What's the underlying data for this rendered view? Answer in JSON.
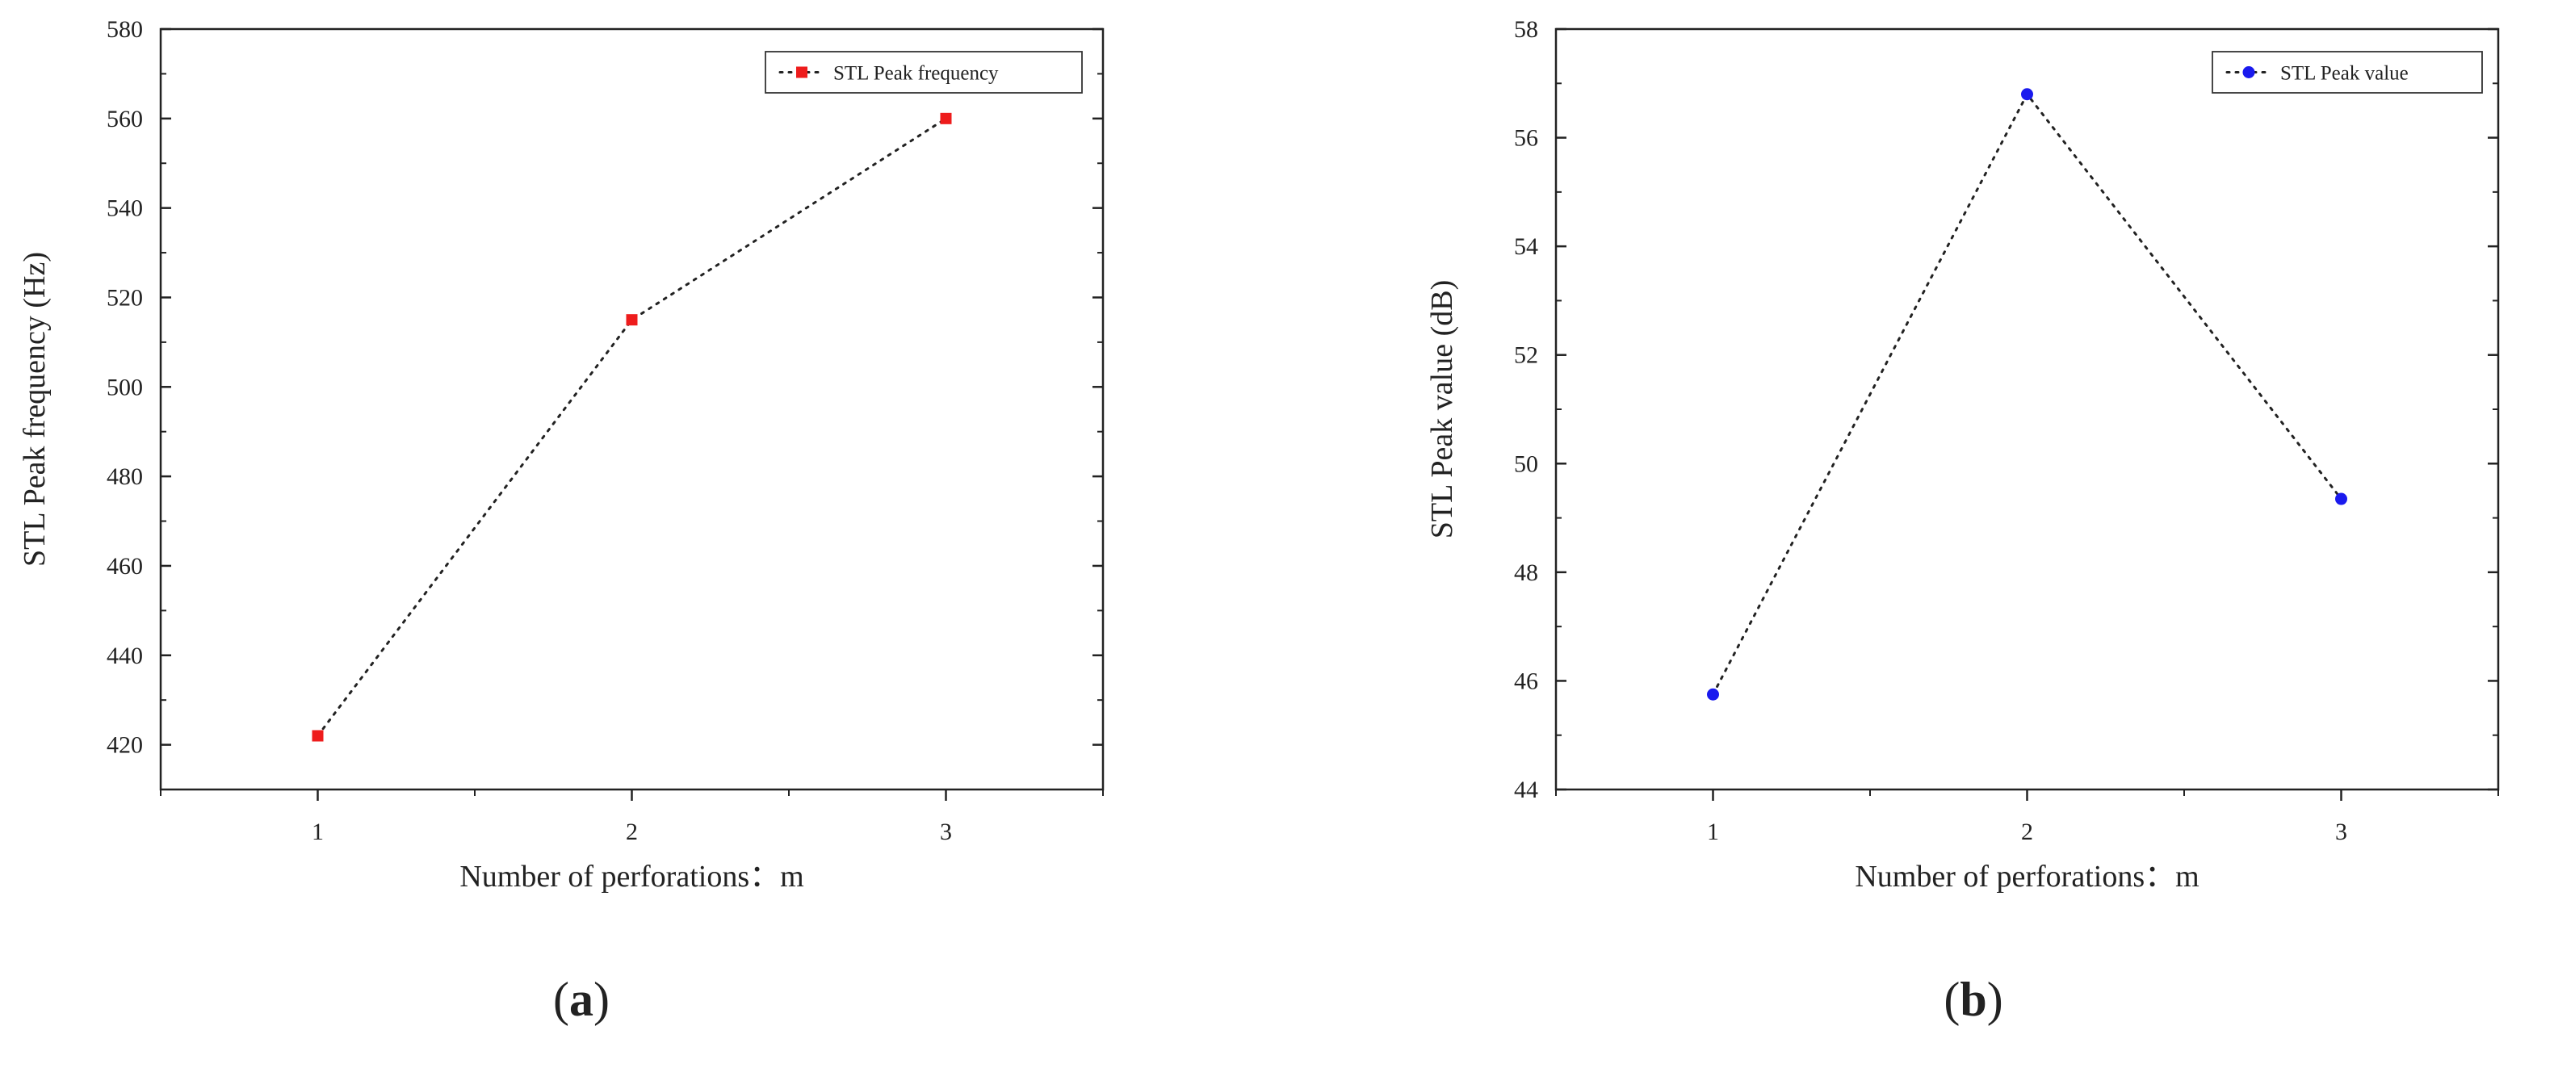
{
  "chart_data": [
    {
      "type": "line",
      "panel_label": "(a)",
      "panel_letter": "a",
      "xlabel": "Number of perforations：m",
      "ylabel": "STL Peak frequency (Hz)",
      "x": [
        1,
        2,
        3
      ],
      "xlim": [
        0.5,
        3.5
      ],
      "ylim": [
        410,
        580
      ],
      "xticks": [
        1,
        2,
        3
      ],
      "yticks": [
        420,
        440,
        460,
        480,
        500,
        520,
        540,
        560,
        580
      ],
      "series": [
        {
          "name": "STL Peak frequency",
          "values": [
            422,
            515,
            560
          ],
          "color": "#ee1c1c",
          "marker": "square",
          "line_style": "dotted"
        }
      ],
      "legend_position": "top-right",
      "grid": false
    },
    {
      "type": "line",
      "panel_label": "(b)",
      "panel_letter": "b",
      "xlabel": "Number of perforations：m",
      "ylabel": "STL Peak value (dB)",
      "x": [
        1,
        2,
        3
      ],
      "xlim": [
        0.5,
        3.5
      ],
      "ylim": [
        44,
        58
      ],
      "xticks": [
        1,
        2,
        3
      ],
      "yticks": [
        44,
        46,
        48,
        50,
        52,
        54,
        56,
        58
      ],
      "series": [
        {
          "name": "STL Peak value",
          "values": [
            45.75,
            56.8,
            49.35
          ],
          "color": "#1a1aee",
          "marker": "circle",
          "line_style": "dotted"
        }
      ],
      "legend_position": "top-right",
      "grid": false
    }
  ]
}
